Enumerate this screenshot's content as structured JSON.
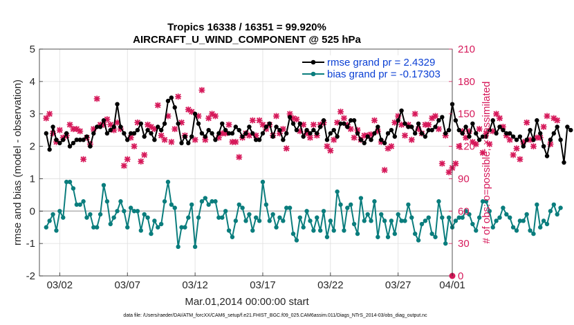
{
  "chart_data": {
    "type": "line",
    "title_line1": "Tropics 16338 / 16351 = 99.920%",
    "title_line2": "AIRCRAFT_U_WIND_COMPONENT @ 525 hPa",
    "xlabel": "Mar.01,2014 00:00:00 start",
    "ylabel": "rmse and bias (model - observation)",
    "ylabel_right": "# of obs: o=possible; ×=assimilated",
    "footer": "data file: /Users/raeder/DAI/ATM_forcXX/CAM6_setup/f.e21.FHIST_BGC.f09_025.CAM6assim.011/Diags_NTrS_2014-03/obs_diag_output.nc",
    "xlim": [
      0.5,
      31.0
    ],
    "ylim": [
      -2,
      5
    ],
    "ylim_right": [
      0,
      210
    ],
    "x_ticks": [
      {
        "value": 2,
        "label": "03/02"
      },
      {
        "value": 7,
        "label": "03/07"
      },
      {
        "value": 12,
        "label": "03/12"
      },
      {
        "value": 17,
        "label": "03/17"
      },
      {
        "value": 22,
        "label": "03/22"
      },
      {
        "value": 27,
        "label": "03/27"
      },
      {
        "value": 32,
        "label": "04/01"
      }
    ],
    "y_ticks": [
      {
        "value": -2,
        "label": "-2"
      },
      {
        "value": -1,
        "label": "-1"
      },
      {
        "value": 0,
        "label": "0"
      },
      {
        "value": 1,
        "label": "1"
      },
      {
        "value": 2,
        "label": "2"
      },
      {
        "value": 3,
        "label": "3"
      },
      {
        "value": 4,
        "label": "4"
      },
      {
        "value": 5,
        "label": "5"
      }
    ],
    "y_ticks_right": [
      {
        "value": 0,
        "label": "0"
      },
      {
        "value": 30,
        "label": "30"
      },
      {
        "value": 60,
        "label": "60"
      },
      {
        "value": 90,
        "label": "90"
      },
      {
        "value": 120,
        "label": "120"
      },
      {
        "value": 150,
        "label": "150"
      },
      {
        "value": 180,
        "label": "180"
      },
      {
        "value": 210,
        "label": "210"
      }
    ],
    "x_start": 1.0,
    "x_step": 0.25,
    "series": [
      {
        "name": "rmse grand pr = 2.4329",
        "color": "#000000",
        "values": [
          2.4,
          1.9,
          2.6,
          2.2,
          2.1,
          2.2,
          2.4,
          2.0,
          2.1,
          2.2,
          2.2,
          2.2,
          2.3,
          2.0,
          2.4,
          2.6,
          2.6,
          2.8,
          2.4,
          2.5,
          2.6,
          3.3,
          2.6,
          2.4,
          2.2,
          2.4,
          2.4,
          2.5,
          2.7,
          2.3,
          2.5,
          2.4,
          2.2,
          2.6,
          2.5,
          2.7,
          3.4,
          3.5,
          3.2,
          2.7,
          2.1,
          2.3,
          2.1,
          2.3,
          3.0,
          2.7,
          2.4,
          2.3,
          2.5,
          2.4,
          2.2,
          2.4,
          2.7,
          2.5,
          2.4,
          2.4,
          2.6,
          2.5,
          2.3,
          2.4,
          2.6,
          2.4,
          2.2,
          2.2,
          2.4,
          2.6,
          2.7,
          2.3,
          2.6,
          2.5,
          2.2,
          2.4,
          2.9,
          2.7,
          2.5,
          2.7,
          2.3,
          2.5,
          2.4,
          2.5,
          2.4,
          2.6,
          2.8,
          2.2,
          2.4,
          2.5,
          2.3,
          2.7,
          2.7,
          2.6,
          2.8,
          2.8,
          2.4,
          2.2,
          2.1,
          2.3,
          2.2,
          2.4,
          2.6,
          2.2,
          2.1,
          2.4,
          2.5,
          2.3,
          2.8,
          3.1,
          2.7,
          2.6,
          2.6,
          2.4,
          2.7,
          2.4,
          2.3,
          2.5,
          2.5,
          2.6,
          2.8,
          2.9,
          2.4,
          2.5,
          3.3,
          2.8,
          2.5,
          2.4,
          2.6,
          2.3,
          2.7,
          2.4,
          2.2,
          2.3,
          2.3,
          2.5,
          2.8,
          2.4,
          2.6,
          2.5,
          2.4,
          2.4,
          2.3,
          2.2,
          2.3,
          2.0,
          2.2,
          2.5,
          2.2,
          2.8,
          2.4,
          2.0,
          1.7,
          2.2,
          2.4,
          2.6,
          2.2,
          1.5,
          2.6,
          2.5
        ]
      },
      {
        "name": "bias grand pr = -0.17303",
        "color": "#0a7d7d",
        "values": [
          -0.5,
          -0.3,
          -0.1,
          -0.6,
          0.0,
          -0.2,
          0.9,
          0.9,
          0.7,
          0.2,
          0.2,
          0.3,
          -0.2,
          -0.1,
          -0.5,
          -0.5,
          -0.1,
          0.8,
          0.3,
          -0.4,
          -0.2,
          0.0,
          0.3,
          0.0,
          -0.5,
          0.1,
          0.0,
          0.0,
          -0.6,
          -0.1,
          -0.2,
          -0.7,
          -0.3,
          -0.5,
          -0.4,
          0.3,
          0.9,
          0.2,
          0.1,
          -1.1,
          -0.5,
          -0.5,
          -0.2,
          0.2,
          -1.1,
          -0.2,
          0.3,
          0.4,
          0.2,
          0.3,
          0.3,
          -0.2,
          -0.2,
          0.0,
          -0.6,
          -0.8,
          -0.3,
          0.2,
          0.1,
          -0.3,
          -0.1,
          -0.6,
          -0.2,
          -0.3,
          0.9,
          0.2,
          -0.3,
          -0.1,
          -0.5,
          -0.2,
          -0.3,
          0.1,
          0.1,
          -0.7,
          -0.9,
          -0.2,
          -0.5,
          0.0,
          -0.3,
          -0.6,
          -0.2,
          -0.6,
          0.0,
          -0.8,
          -0.3,
          -0.6,
          0.6,
          0.2,
          -0.6,
          0.1,
          0.2,
          -0.4,
          -0.7,
          0.4,
          -0.3,
          -0.1,
          -0.3,
          0.3,
          -0.8,
          -0.1,
          -0.3,
          -0.8,
          -0.3,
          -0.7,
          -0.1,
          -0.3,
          -0.3,
          0.2,
          -0.2,
          -0.7,
          -0.9,
          -0.4,
          -0.3,
          -0.2,
          -0.7,
          -0.8,
          0.3,
          -0.2,
          -1.0,
          -0.2,
          -0.5,
          -0.3,
          -0.2,
          -0.2,
          0.0,
          -0.1,
          -0.4,
          -0.6,
          -0.2,
          0.3,
          0.3,
          0.0,
          -0.5,
          -0.3,
          -0.2,
          0.1,
          -0.1,
          -0.2,
          -0.5,
          -0.6,
          -0.3,
          -0.3,
          -0.1,
          -0.6,
          -0.7,
          0.2,
          -0.5,
          -0.3,
          -0.4,
          0.0,
          0.2,
          -0.1,
          0.1
        ]
      },
      {
        "name": "# of obs assimilated",
        "color": "#d6195a",
        "axis": "right",
        "values": [
          146,
          150,
          132,
          124,
          135,
          128,
          130,
          140,
          136,
          136,
          134,
          108,
          128,
          122,
          136,
          164,
          140,
          140,
          145,
          140,
          135,
          142,
          136,
          102,
          108,
          128,
          120,
          142,
          106,
          112,
          140,
          138,
          136,
          158,
          130,
          126,
          148,
          124,
          136,
          166,
          142,
          130,
          154,
          152,
          126,
          148,
          172,
          126,
          146,
          150,
          148,
          128,
          132,
          132,
          140,
          124,
          124,
          110,
          128,
          132,
          130,
          144,
          130,
          144,
          140,
          136,
          140,
          130,
          148,
          132,
          136,
          118,
          150,
          146,
          145,
          134,
          140,
          132,
          128,
          140,
          130,
          140,
          142,
          120,
          116,
          126,
          142,
          152,
          146,
          140,
          136,
          128,
          135,
          126,
          130,
          130,
          131,
          144,
          134,
          124,
          98,
          118,
          120,
          142,
          148,
          140,
          130,
          140,
          126,
          150,
          136,
          132,
          140,
          140,
          146,
          148,
          136,
          104,
          130,
          96,
          100,
          104,
          120,
          134,
          128,
          134,
          124,
          122,
          136,
          114,
          132,
          122,
          134,
          150,
          146,
          138,
          130,
          126,
          112,
          118,
          108,
          124,
          142,
          126,
          120,
          128,
          128,
          138,
          148,
          122,
          146,
          144
        ]
      }
    ],
    "legend": {
      "position": "top-right",
      "entries": [
        "rmse grand pr = 2.4329",
        "bias grand pr = -0.17303"
      ]
    },
    "zero_line_color": "#b3b3b3",
    "grid": true
  }
}
